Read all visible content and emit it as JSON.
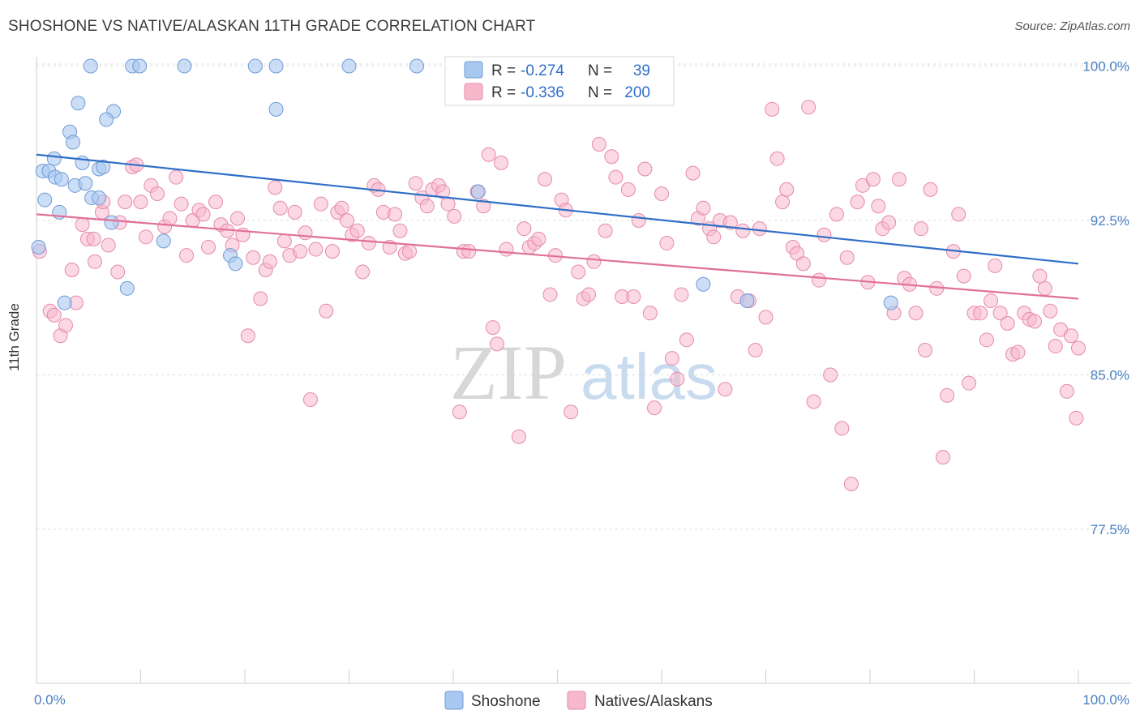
{
  "header": {
    "title": "SHOSHONE VS NATIVE/ALASKAN 11TH GRADE CORRELATION CHART",
    "source": "Source: ZipAtlas.com"
  },
  "legend": {
    "r_label": "R =",
    "n_label": "N =",
    "series1": {
      "r": "-0.274",
      "n": "39"
    },
    "series2": {
      "r": "-0.336",
      "n": "200"
    }
  },
  "bottom_legend": {
    "series1": "Shoshone",
    "series2": "Natives/Alaskans"
  },
  "watermark": {
    "zip": "ZIP",
    "atlas": "atlas"
  },
  "chart_data": {
    "type": "scatter",
    "title": "SHOSHONE VS NATIVE/ALASKAN 11TH GRADE CORRELATION CHART",
    "ylabel": "11th Grade",
    "xlabel": "",
    "xlim": [
      0,
      100
    ],
    "ylim": [
      70.0,
      101.5
    ],
    "y_ticks": [
      77.5,
      85.0,
      92.5,
      100.0
    ],
    "y_tick_labels": [
      "77.5%",
      "85.0%",
      "92.5%",
      "100.0%"
    ],
    "x_tick_labels": [
      "0.0%",
      "100.0%"
    ],
    "grid": true,
    "legend_position": "top-center",
    "colors": {
      "series1": "#a9c8f0",
      "series1_line": "#2f6fc7",
      "series2": "#f7b8cc",
      "series2_line": "#e0709a"
    },
    "series": [
      {
        "name": "Shoshone",
        "r": -0.274,
        "n": 39,
        "trend": [
          [
            0,
            95.7
          ],
          [
            100,
            90.4
          ]
        ],
        "points": [
          [
            5.2,
            100.0
          ],
          [
            9.2,
            100.0
          ],
          [
            9.9,
            100.0
          ],
          [
            14.2,
            100.0
          ],
          [
            21.0,
            100.0
          ],
          [
            23.0,
            100.0
          ],
          [
            30.0,
            100.0
          ],
          [
            36.5,
            100.0
          ],
          [
            4.0,
            98.2
          ],
          [
            7.4,
            97.8
          ],
          [
            6.7,
            97.4
          ],
          [
            23.0,
            97.9
          ],
          [
            3.2,
            96.8
          ],
          [
            3.5,
            96.3
          ],
          [
            1.7,
            95.5
          ],
          [
            4.4,
            95.3
          ],
          [
            0.6,
            94.9
          ],
          [
            1.2,
            94.9
          ],
          [
            6.0,
            95.0
          ],
          [
            6.4,
            95.1
          ],
          [
            1.8,
            94.6
          ],
          [
            2.4,
            94.5
          ],
          [
            3.7,
            94.2
          ],
          [
            4.7,
            94.3
          ],
          [
            0.8,
            93.5
          ],
          [
            5.3,
            93.6
          ],
          [
            6.0,
            93.6
          ],
          [
            2.2,
            92.9
          ],
          [
            7.2,
            92.4
          ],
          [
            42.4,
            93.9
          ],
          [
            0.2,
            91.2
          ],
          [
            12.2,
            91.5
          ],
          [
            18.6,
            90.8
          ],
          [
            19.1,
            90.4
          ],
          [
            8.7,
            89.2
          ],
          [
            2.7,
            88.5
          ],
          [
            64.0,
            89.4
          ],
          [
            68.2,
            88.6
          ],
          [
            82.0,
            88.5
          ]
        ]
      },
      {
        "name": "Natives/Alaskans",
        "r": -0.336,
        "n": 200,
        "trend": [
          [
            0,
            92.8
          ],
          [
            100,
            88.7
          ]
        ],
        "points": [
          [
            0.3,
            91.0
          ],
          [
            1.3,
            88.1
          ],
          [
            1.7,
            87.9
          ],
          [
            2.3,
            86.9
          ],
          [
            2.8,
            87.4
          ],
          [
            3.4,
            90.1
          ],
          [
            3.8,
            88.5
          ],
          [
            4.4,
            92.3
          ],
          [
            4.9,
            91.6
          ],
          [
            5.5,
            91.6
          ],
          [
            5.6,
            90.5
          ],
          [
            6.3,
            92.9
          ],
          [
            6.4,
            93.4
          ],
          [
            6.9,
            91.3
          ],
          [
            7.8,
            90.0
          ],
          [
            8.0,
            92.4
          ],
          [
            8.5,
            93.4
          ],
          [
            9.2,
            95.1
          ],
          [
            9.6,
            95.2
          ],
          [
            10.0,
            93.4
          ],
          [
            10.5,
            91.7
          ],
          [
            11.0,
            94.2
          ],
          [
            11.6,
            93.8
          ],
          [
            12.3,
            92.2
          ],
          [
            12.8,
            92.6
          ],
          [
            13.4,
            94.6
          ],
          [
            13.9,
            93.3
          ],
          [
            14.4,
            90.8
          ],
          [
            15.0,
            92.5
          ],
          [
            15.6,
            93.0
          ],
          [
            16.0,
            92.8
          ],
          [
            16.5,
            91.2
          ],
          [
            17.2,
            93.4
          ],
          [
            17.7,
            92.3
          ],
          [
            18.3,
            92.0
          ],
          [
            18.8,
            91.3
          ],
          [
            19.3,
            92.6
          ],
          [
            19.8,
            91.8
          ],
          [
            20.3,
            86.9
          ],
          [
            20.8,
            90.7
          ],
          [
            21.5,
            88.7
          ],
          [
            22.0,
            90.1
          ],
          [
            22.4,
            90.5
          ],
          [
            22.9,
            94.1
          ],
          [
            23.4,
            93.1
          ],
          [
            23.8,
            91.5
          ],
          [
            24.3,
            90.8
          ],
          [
            24.8,
            92.9
          ],
          [
            25.3,
            91.0
          ],
          [
            25.8,
            91.9
          ],
          [
            26.3,
            83.8
          ],
          [
            26.8,
            91.1
          ],
          [
            27.3,
            93.3
          ],
          [
            27.8,
            88.1
          ],
          [
            28.4,
            91.0
          ],
          [
            28.9,
            92.9
          ],
          [
            29.3,
            93.1
          ],
          [
            29.8,
            92.5
          ],
          [
            30.3,
            91.8
          ],
          [
            30.8,
            92.0
          ],
          [
            31.3,
            90.0
          ],
          [
            31.9,
            91.4
          ],
          [
            32.4,
            94.2
          ],
          [
            32.8,
            94.0
          ],
          [
            33.3,
            92.9
          ],
          [
            33.9,
            91.2
          ],
          [
            34.4,
            92.8
          ],
          [
            34.9,
            92.0
          ],
          [
            35.4,
            90.9
          ],
          [
            35.8,
            91.0
          ],
          [
            36.4,
            94.3
          ],
          [
            37.0,
            93.6
          ],
          [
            37.5,
            93.2
          ],
          [
            38.0,
            94.0
          ],
          [
            38.6,
            94.2
          ],
          [
            39.0,
            93.9
          ],
          [
            39.5,
            93.3
          ],
          [
            40.1,
            92.7
          ],
          [
            40.6,
            83.2
          ],
          [
            41.0,
            91.0
          ],
          [
            41.5,
            91.0
          ],
          [
            42.3,
            93.9
          ],
          [
            42.9,
            93.2
          ],
          [
            43.4,
            95.7
          ],
          [
            43.8,
            87.3
          ],
          [
            44.2,
            86.5
          ],
          [
            44.6,
            95.3
          ],
          [
            45.1,
            91.1
          ],
          [
            46.3,
            82.0
          ],
          [
            46.8,
            92.1
          ],
          [
            47.3,
            91.2
          ],
          [
            47.8,
            91.4
          ],
          [
            48.2,
            91.6
          ],
          [
            48.8,
            94.5
          ],
          [
            49.3,
            88.9
          ],
          [
            49.8,
            90.8
          ],
          [
            50.4,
            93.5
          ],
          [
            50.8,
            93.0
          ],
          [
            51.3,
            83.2
          ],
          [
            52.0,
            90.0
          ],
          [
            52.5,
            88.7
          ],
          [
            53.0,
            88.9
          ],
          [
            53.5,
            90.5
          ],
          [
            54.0,
            96.2
          ],
          [
            54.6,
            92.0
          ],
          [
            55.2,
            95.6
          ],
          [
            55.6,
            94.6
          ],
          [
            56.2,
            88.8
          ],
          [
            56.8,
            94.0
          ],
          [
            57.3,
            88.8
          ],
          [
            57.8,
            92.5
          ],
          [
            58.4,
            95.0
          ],
          [
            58.9,
            88.0
          ],
          [
            59.3,
            83.4
          ],
          [
            60.0,
            93.8
          ],
          [
            60.5,
            91.4
          ],
          [
            61.0,
            85.8
          ],
          [
            61.5,
            84.8
          ],
          [
            61.9,
            88.9
          ],
          [
            62.4,
            86.7
          ],
          [
            63.0,
            94.8
          ],
          [
            63.5,
            92.6
          ],
          [
            64.0,
            93.1
          ],
          [
            64.6,
            92.1
          ],
          [
            65.0,
            91.7
          ],
          [
            65.6,
            92.5
          ],
          [
            66.1,
            84.3
          ],
          [
            66.6,
            92.4
          ],
          [
            67.3,
            88.8
          ],
          [
            67.8,
            92.0
          ],
          [
            68.4,
            88.6
          ],
          [
            69.0,
            86.2
          ],
          [
            69.4,
            92.1
          ],
          [
            70.0,
            87.8
          ],
          [
            70.6,
            97.9
          ],
          [
            71.1,
            95.5
          ],
          [
            71.6,
            93.4
          ],
          [
            72.0,
            94.0
          ],
          [
            72.6,
            91.2
          ],
          [
            73.0,
            90.9
          ],
          [
            73.6,
            90.4
          ],
          [
            74.1,
            98.0
          ],
          [
            74.6,
            83.7
          ],
          [
            75.1,
            89.6
          ],
          [
            75.6,
            91.8
          ],
          [
            76.2,
            85.0
          ],
          [
            76.8,
            92.8
          ],
          [
            77.3,
            82.4
          ],
          [
            77.8,
            90.7
          ],
          [
            78.2,
            79.7
          ],
          [
            78.8,
            93.4
          ],
          [
            79.3,
            94.2
          ],
          [
            79.8,
            89.5
          ],
          [
            80.3,
            94.5
          ],
          [
            80.8,
            93.2
          ],
          [
            81.2,
            92.1
          ],
          [
            81.8,
            92.4
          ],
          [
            82.3,
            88.0
          ],
          [
            82.8,
            94.5
          ],
          [
            83.3,
            89.7
          ],
          [
            83.8,
            89.4
          ],
          [
            84.4,
            88.0
          ],
          [
            84.9,
            92.1
          ],
          [
            85.3,
            86.2
          ],
          [
            85.8,
            94.0
          ],
          [
            86.4,
            89.2
          ],
          [
            87.0,
            81.0
          ],
          [
            87.4,
            84.0
          ],
          [
            88.0,
            91.0
          ],
          [
            88.5,
            92.8
          ],
          [
            89.0,
            89.8
          ],
          [
            89.5,
            84.6
          ],
          [
            90.0,
            88.0
          ],
          [
            90.6,
            88.0
          ],
          [
            91.2,
            86.7
          ],
          [
            91.6,
            88.6
          ],
          [
            92.0,
            90.3
          ],
          [
            92.5,
            88.0
          ],
          [
            93.2,
            87.5
          ],
          [
            93.7,
            86.0
          ],
          [
            94.2,
            86.1
          ],
          [
            94.8,
            88.0
          ],
          [
            95.3,
            87.7
          ],
          [
            95.8,
            87.6
          ],
          [
            96.3,
            89.8
          ],
          [
            96.8,
            89.2
          ],
          [
            97.3,
            88.1
          ],
          [
            97.8,
            86.4
          ],
          [
            98.3,
            87.2
          ],
          [
            98.9,
            84.2
          ],
          [
            99.3,
            86.9
          ],
          [
            99.8,
            82.9
          ],
          [
            100.0,
            86.3
          ]
        ]
      }
    ]
  }
}
